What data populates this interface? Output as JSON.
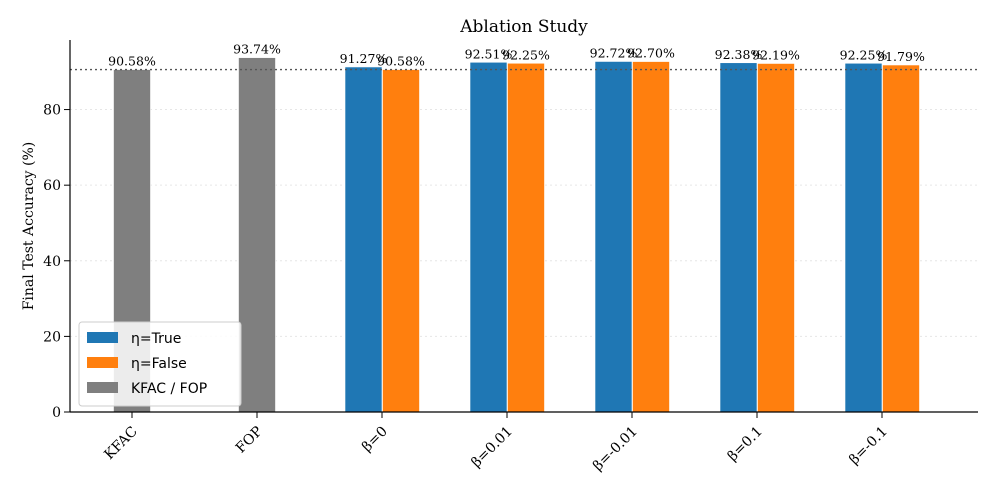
{
  "chart_data": {
    "type": "bar",
    "title": "Ablation Study",
    "xlabel": "",
    "ylabel": "Final Test Accuracy (%)",
    "ylim": [
      0,
      98.4
    ],
    "yticks": [
      0,
      20,
      40,
      60,
      80
    ],
    "grid": true,
    "legend_position": "lower-left",
    "reference_line": {
      "value": 90.58,
      "style": "dotted"
    },
    "categories": [
      "KFAC",
      "FOP",
      "β=0",
      "β=0.01",
      "β=-0.01",
      "β=0.1",
      "β=-0.1"
    ],
    "series": [
      {
        "name": "KFAC / FOP",
        "color": "#7f7f7f",
        "values": [
          90.58,
          93.74,
          null,
          null,
          null,
          null,
          null
        ],
        "labels": [
          "90.58%",
          "93.74%",
          null,
          null,
          null,
          null,
          null
        ]
      },
      {
        "name": "η=True",
        "color": "#1f77b4",
        "values": [
          null,
          null,
          91.27,
          92.51,
          92.72,
          92.38,
          92.25
        ],
        "labels": [
          null,
          null,
          "91.27%",
          "92.51%",
          "92.72%",
          "92.38%",
          "92.25%"
        ]
      },
      {
        "name": "η=False",
        "color": "#ff7f0e",
        "values": [
          null,
          null,
          90.58,
          92.25,
          92.7,
          92.19,
          91.79
        ],
        "labels": [
          null,
          null,
          "90.58%",
          "92.25%",
          "92.70%",
          "92.19%",
          "91.79%"
        ]
      }
    ],
    "legend": [
      {
        "label": "η=True",
        "color": "#1f77b4"
      },
      {
        "label": "η=False",
        "color": "#ff7f0e"
      },
      {
        "label": "KFAC / FOP",
        "color": "#7f7f7f"
      }
    ]
  }
}
